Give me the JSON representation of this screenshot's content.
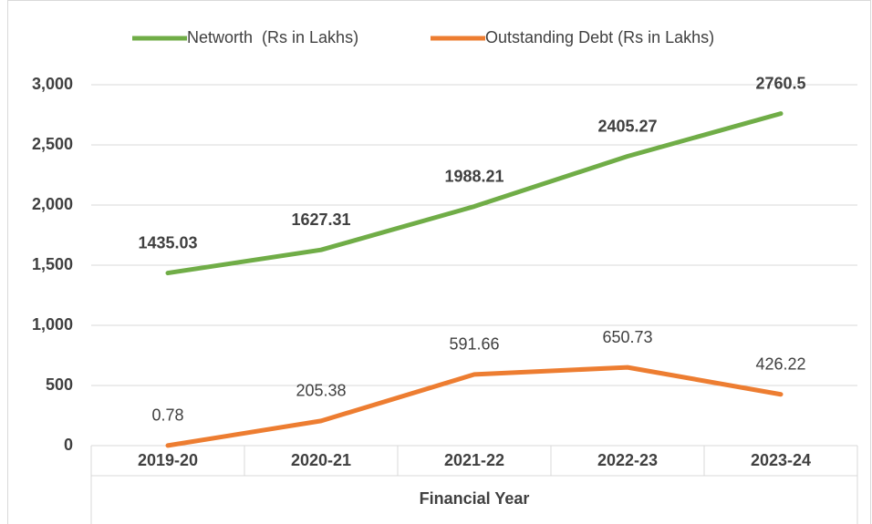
{
  "chart_data": {
    "type": "line",
    "x_label": "Financial Year",
    "categories": [
      "2019-20",
      "2020-21",
      "2021-22",
      "2022-23",
      "2023-24"
    ],
    "series": [
      {
        "name": "Networth  (Rs in Lakhs)",
        "color": "#70ad47",
        "values": [
          1435.03,
          1627.31,
          1988.21,
          2405.27,
          2760.5
        ]
      },
      {
        "name": "Outstanding Debt (Rs in Lakhs)",
        "color": "#ed7d31",
        "values": [
          0.78,
          205.38,
          591.66,
          650.73,
          426.22
        ]
      }
    ],
    "ylim": [
      0,
      3000
    ],
    "yticks": [
      0,
      500,
      {
        "value": 1000,
        "label": "1,000"
      },
      {
        "value": 1500,
        "label": "1,500"
      },
      {
        "value": 2000,
        "label": "2,000"
      },
      {
        "value": 2500,
        "label": "2,500"
      },
      {
        "value": 3000,
        "label": "3,000"
      }
    ],
    "grid": true,
    "legend": "top"
  }
}
